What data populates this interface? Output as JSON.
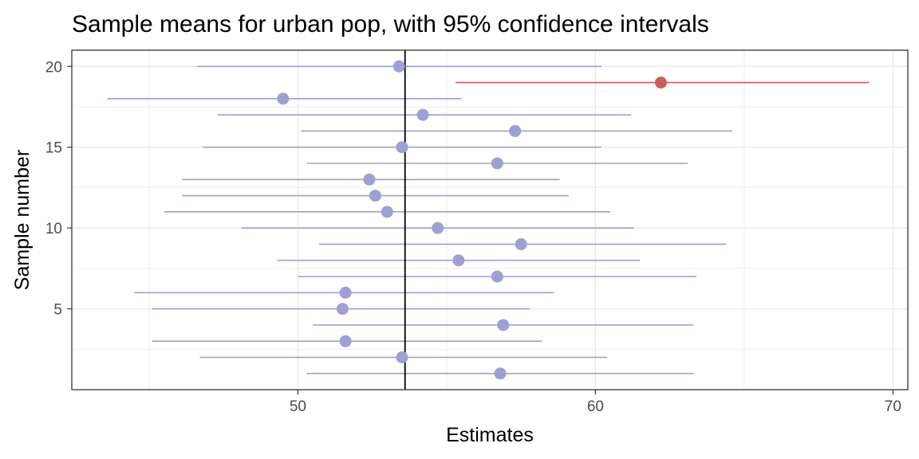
{
  "chart_data": {
    "type": "scatter",
    "title": "Sample means for urban pop, with 95% confidence intervals",
    "xlabel": "Estimates",
    "ylabel": "Sample number",
    "xlim": [
      42.4,
      70.5
    ],
    "ylim": [
      0,
      21
    ],
    "x_ticks": [
      50,
      60,
      70
    ],
    "y_ticks": [
      5,
      10,
      15,
      20
    ],
    "reference_line": 53.6,
    "grid": true,
    "colors": {
      "covers": "#9f9fd2",
      "misses": "#cd5c5c",
      "reference": "#000000",
      "grid": "#ebebeb"
    },
    "samples": [
      {
        "sample": 1,
        "estimate": 56.8,
        "lower": 50.3,
        "upper": 63.3,
        "covers": true
      },
      {
        "sample": 2,
        "estimate": 53.5,
        "lower": 46.7,
        "upper": 60.4,
        "covers": true
      },
      {
        "sample": 3,
        "estimate": 51.6,
        "lower": 45.1,
        "upper": 58.2,
        "covers": true
      },
      {
        "sample": 4,
        "estimate": 56.9,
        "lower": 50.5,
        "upper": 63.3,
        "covers": true
      },
      {
        "sample": 5,
        "estimate": 51.5,
        "lower": 45.1,
        "upper": 57.8,
        "covers": true
      },
      {
        "sample": 6,
        "estimate": 51.6,
        "lower": 44.5,
        "upper": 58.6,
        "covers": true
      },
      {
        "sample": 7,
        "estimate": 56.7,
        "lower": 50.0,
        "upper": 63.4,
        "covers": true
      },
      {
        "sample": 8,
        "estimate": 55.4,
        "lower": 49.3,
        "upper": 61.5,
        "covers": true
      },
      {
        "sample": 9,
        "estimate": 57.5,
        "lower": 50.7,
        "upper": 64.4,
        "covers": true
      },
      {
        "sample": 10,
        "estimate": 54.7,
        "lower": 48.1,
        "upper": 61.3,
        "covers": true
      },
      {
        "sample": 11,
        "estimate": 53.0,
        "lower": 45.5,
        "upper": 60.5,
        "covers": true
      },
      {
        "sample": 12,
        "estimate": 52.6,
        "lower": 46.1,
        "upper": 59.1,
        "covers": true
      },
      {
        "sample": 13,
        "estimate": 52.4,
        "lower": 46.1,
        "upper": 58.8,
        "covers": true
      },
      {
        "sample": 14,
        "estimate": 56.7,
        "lower": 50.3,
        "upper": 63.1,
        "covers": true
      },
      {
        "sample": 15,
        "estimate": 53.5,
        "lower": 46.8,
        "upper": 60.2,
        "covers": true
      },
      {
        "sample": 16,
        "estimate": 57.3,
        "lower": 50.1,
        "upper": 64.6,
        "covers": true
      },
      {
        "sample": 17,
        "estimate": 54.2,
        "lower": 47.3,
        "upper": 61.2,
        "covers": true
      },
      {
        "sample": 18,
        "estimate": 49.5,
        "lower": 43.6,
        "upper": 55.5,
        "covers": true
      },
      {
        "sample": 19,
        "estimate": 62.2,
        "lower": 55.3,
        "upper": 69.2,
        "covers": false
      },
      {
        "sample": 20,
        "estimate": 53.4,
        "lower": 46.6,
        "upper": 60.2,
        "covers": true
      }
    ]
  }
}
